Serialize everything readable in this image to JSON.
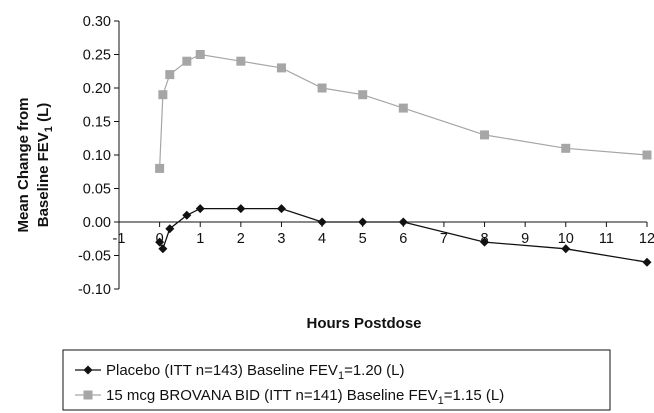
{
  "chart_data": {
    "type": "line",
    "title": "",
    "xlabel": "Hours Postdose",
    "ylabel_line1": "Mean Change from",
    "ylabel_line2": "Baseline FEV",
    "ylabel_subscript": "1",
    "ylabel_unit": " (L)",
    "xlim": [
      -1,
      12
    ],
    "ylim": [
      -0.1,
      0.3
    ],
    "x_ticks": [
      -1,
      0,
      1,
      2,
      3,
      4,
      5,
      6,
      7,
      8,
      9,
      10,
      11,
      12
    ],
    "x_tick_labels": [
      "-1",
      "0",
      "1",
      "2",
      "3",
      "4",
      "5",
      "6",
      "7",
      "8",
      "9",
      "10",
      "11",
      "12"
    ],
    "y_ticks": [
      -0.1,
      -0.05,
      0.0,
      0.05,
      0.1,
      0.15,
      0.2,
      0.25,
      0.3
    ],
    "y_tick_labels": [
      "-0.10",
      "-0.05",
      "0.00",
      "0.05",
      "0.10",
      "0.15",
      "0.20",
      "0.25",
      "0.30"
    ],
    "grid": false,
    "legend_position": "bottom",
    "series": [
      {
        "name": "Placebo (ITT n=143) Baseline FEV",
        "name_subscript": "1",
        "name_suffix": "=1.20 (L)",
        "color": "#111111",
        "marker": "diamond",
        "x": [
          0,
          0.08,
          0.25,
          0.67,
          1,
          2,
          3,
          4,
          5,
          6,
          8,
          10,
          12
        ],
        "values": [
          -0.03,
          -0.04,
          -0.01,
          0.01,
          0.02,
          0.02,
          0.02,
          0.0,
          0.0,
          0.0,
          -0.03,
          -0.04,
          -0.06
        ]
      },
      {
        "name": "15 mcg BROVANA BID (ITT n=141) Baseline FEV",
        "name_subscript": "1",
        "name_suffix": "=1.15 (L)",
        "color": "#a6a6a6",
        "marker": "square",
        "x": [
          0,
          0.08,
          0.25,
          0.67,
          1,
          2,
          3,
          4,
          5,
          6,
          8,
          10,
          12
        ],
        "values": [
          0.08,
          0.19,
          0.22,
          0.24,
          0.25,
          0.24,
          0.23,
          0.2,
          0.19,
          0.17,
          0.13,
          0.11,
          0.1
        ]
      }
    ]
  }
}
